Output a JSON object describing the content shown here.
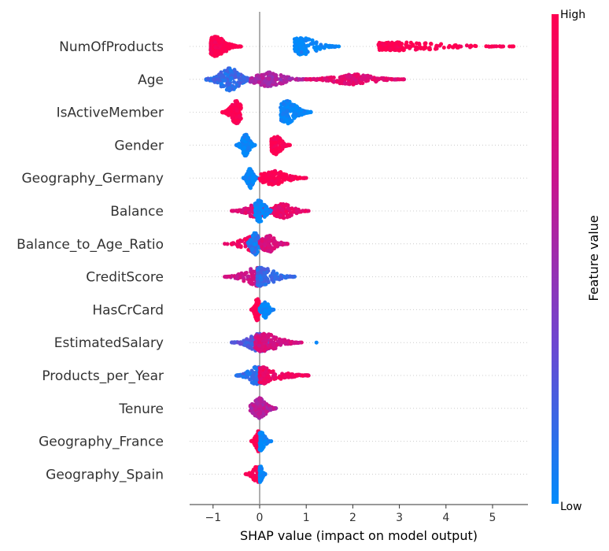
{
  "chart_data": {
    "type": "scatter",
    "subtype": "shap-beeswarm",
    "title": "",
    "xlabel": "SHAP value (impact on model output)",
    "xlim": [
      -1.5,
      5.8
    ],
    "xticks": [
      -1,
      0,
      1,
      2,
      3,
      4,
      5
    ],
    "xtick_labels": [
      "−1",
      "0",
      "1",
      "2",
      "3",
      "4",
      "5"
    ],
    "zero_line": 0,
    "grid": false,
    "colorbar": {
      "label": "Feature value",
      "high": "High",
      "low": "Low",
      "colors": [
        "#008bfb",
        "#6e46d0",
        "#c9158d",
        "#ff0051"
      ]
    },
    "features": [
      {
        "name": "NumOfProducts",
        "clusters": [
          {
            "min": -1.05,
            "max": -0.4,
            "center": -0.95,
            "spread": 0.48,
            "v": 1.0,
            "n": 260
          },
          {
            "min": 0.75,
            "max": 1.7,
            "center": 0.9,
            "spread": 0.42,
            "v": 0.0,
            "n": 170
          },
          {
            "min": 2.55,
            "max": 5.45,
            "center": 3.0,
            "spread": 0.2,
            "v": 1.0,
            "n": 180
          }
        ]
      },
      {
        "name": "Age",
        "clusters": [
          {
            "min": -1.15,
            "max": -0.1,
            "center": -0.65,
            "spread": 0.55,
            "v": 0.15,
            "n": 220
          },
          {
            "min": -0.2,
            "max": 1.0,
            "center": 0.2,
            "spread": 0.35,
            "v": 0.55,
            "n": 170
          },
          {
            "min": 1.0,
            "max": 3.1,
            "center": 2.0,
            "spread": 0.25,
            "v": 0.82,
            "n": 200
          }
        ]
      },
      {
        "name": "IsActiveMember",
        "clusters": [
          {
            "min": -0.8,
            "max": -0.4,
            "center": -0.5,
            "spread": 0.55,
            "v": 1.0,
            "n": 200
          },
          {
            "min": 0.45,
            "max": 1.1,
            "center": 0.6,
            "spread": 0.55,
            "v": 0.0,
            "n": 200
          }
        ]
      },
      {
        "name": "Gender",
        "clusters": [
          {
            "min": -0.5,
            "max": -0.1,
            "center": -0.3,
            "spread": 0.55,
            "v": 0.0,
            "n": 150
          },
          {
            "min": 0.25,
            "max": 0.65,
            "center": 0.35,
            "spread": 0.45,
            "v": 1.0,
            "n": 130
          }
        ]
      },
      {
        "name": "Geography_Germany",
        "clusters": [
          {
            "min": -0.35,
            "max": -0.05,
            "center": -0.2,
            "spread": 0.5,
            "v": 0.0,
            "n": 150
          },
          {
            "min": 0.0,
            "max": 1.0,
            "center": 0.3,
            "spread": 0.35,
            "v": 1.0,
            "n": 160
          }
        ]
      },
      {
        "name": "Balance",
        "clusters": [
          {
            "min": -0.6,
            "max": 0.3,
            "center": -0.05,
            "spread": 0.35,
            "v": 0.8,
            "n": 140
          },
          {
            "min": -0.1,
            "max": 0.3,
            "center": 0.0,
            "spread": 0.55,
            "v": 0.0,
            "n": 120
          },
          {
            "min": 0.3,
            "max": 1.05,
            "center": 0.5,
            "spread": 0.35,
            "v": 0.85,
            "n": 120
          }
        ]
      },
      {
        "name": "Balance_to_Age_Ratio",
        "clusters": [
          {
            "min": -0.75,
            "max": -0.1,
            "center": -0.2,
            "spread": 0.35,
            "v": 0.9,
            "n": 90
          },
          {
            "min": -0.25,
            "max": 0.1,
            "center": -0.1,
            "spread": 0.55,
            "v": 0.1,
            "n": 150
          },
          {
            "min": 0.0,
            "max": 0.6,
            "center": 0.2,
            "spread": 0.4,
            "v": 0.75,
            "n": 150
          }
        ]
      },
      {
        "name": "CreditScore",
        "clusters": [
          {
            "min": -0.75,
            "max": 0.1,
            "center": -0.05,
            "spread": 0.45,
            "v": 0.7,
            "n": 160
          },
          {
            "min": -0.05,
            "max": 0.75,
            "center": 0.05,
            "spread": 0.45,
            "v": 0.15,
            "n": 170
          }
        ]
      },
      {
        "name": "HasCrCard",
        "clusters": [
          {
            "min": -0.18,
            "max": 0.0,
            "center": -0.05,
            "spread": 0.55,
            "v": 1.0,
            "n": 110
          },
          {
            "min": 0.0,
            "max": 0.3,
            "center": 0.12,
            "spread": 0.4,
            "v": 0.0,
            "n": 80
          }
        ]
      },
      {
        "name": "EstimatedSalary",
        "clusters": [
          {
            "min": -0.6,
            "max": 0.2,
            "center": 0.0,
            "spread": 0.45,
            "v": 0.25,
            "n": 160
          },
          {
            "min": -0.1,
            "max": 0.9,
            "center": 0.1,
            "spread": 0.45,
            "v": 0.75,
            "n": 180
          },
          {
            "min": 1.22,
            "max": 1.22,
            "center": 1.22,
            "spread": 0.0,
            "v": 0.0,
            "n": 1
          }
        ]
      },
      {
        "name": "Products_per_Year",
        "clusters": [
          {
            "min": -0.5,
            "max": 0.05,
            "center": -0.05,
            "spread": 0.45,
            "v": 0.15,
            "n": 170
          },
          {
            "min": 0.0,
            "max": 1.05,
            "center": 0.1,
            "spread": 0.4,
            "v": 0.9,
            "n": 170
          }
        ]
      },
      {
        "name": "Tenure",
        "clusters": [
          {
            "min": -0.2,
            "max": 0.35,
            "center": 0.0,
            "spread": 0.5,
            "v": 0.6,
            "n": 200
          }
        ]
      },
      {
        "name": "Geography_France",
        "clusters": [
          {
            "min": -0.18,
            "max": 0.0,
            "center": -0.03,
            "spread": 0.5,
            "v": 1.0,
            "n": 90
          },
          {
            "min": 0.0,
            "max": 0.25,
            "center": 0.03,
            "spread": 0.45,
            "v": 0.0,
            "n": 90
          }
        ]
      },
      {
        "name": "Geography_Spain",
        "clusters": [
          {
            "min": -0.3,
            "max": 0.02,
            "center": -0.05,
            "spread": 0.4,
            "v": 1.0,
            "n": 70
          },
          {
            "min": 0.0,
            "max": 0.12,
            "center": 0.02,
            "spread": 0.4,
            "v": 0.0,
            "n": 80
          }
        ]
      }
    ]
  }
}
